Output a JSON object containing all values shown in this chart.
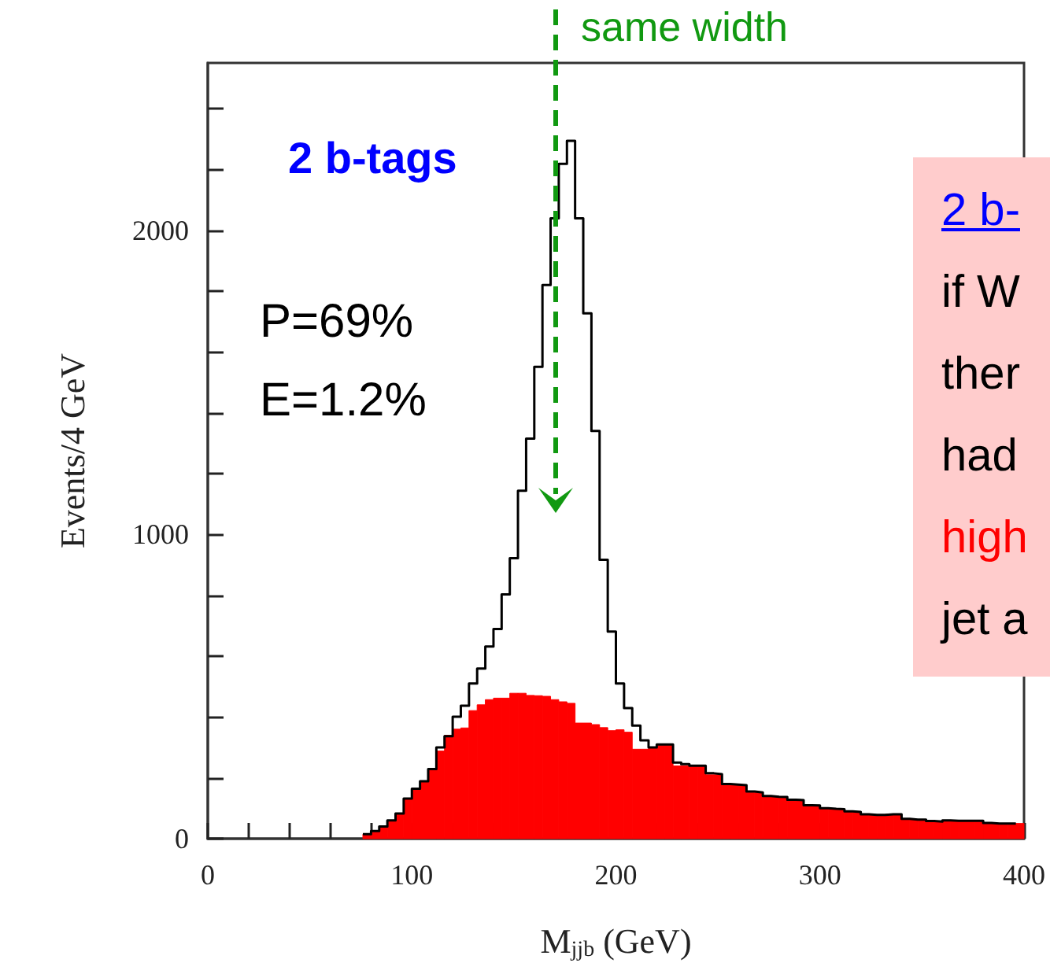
{
  "chart_data": {
    "type": "histogram",
    "xlabel": "M$_{jjb}$ (GeV)",
    "ylabel": "Events/4 GeV",
    "bins": [
      76,
      80,
      84,
      88,
      92,
      96,
      100,
      104,
      108,
      112,
      116,
      120,
      124,
      128,
      132,
      136,
      140,
      144,
      148,
      152,
      156,
      160,
      164,
      168,
      172,
      176,
      180,
      184,
      188,
      192,
      196,
      200,
      204,
      208,
      212,
      216,
      220,
      224,
      228,
      232,
      236,
      240,
      244,
      248,
      252,
      256,
      260,
      264,
      268,
      272,
      276,
      280,
      284,
      288,
      292,
      296,
      300,
      304,
      308,
      312,
      316,
      320,
      324,
      328,
      332,
      336,
      340,
      344,
      348,
      352,
      356,
      360,
      364,
      368,
      372,
      376,
      380,
      384,
      388,
      392,
      396,
      400
    ],
    "series": [
      {
        "color": "#ff0000",
        "values": [
          15,
          25,
          40,
          60,
          83,
          132,
          164,
          189,
          229,
          288,
          340,
          360,
          364,
          421,
          440,
          457,
          462,
          462,
          478,
          478,
          471,
          470,
          468,
          457,
          450,
          445,
          380,
          380,
          375,
          365,
          355,
          358,
          350,
          294,
          294,
          300,
          307,
          307,
          239,
          239,
          239,
          239,
          210,
          210,
          176,
          176,
          176,
          151,
          151,
          137,
          137,
          137,
          127,
          127,
          109,
          109,
          97,
          97,
          97,
          88,
          88,
          78,
          78,
          78,
          80,
          80,
          63,
          63,
          63,
          55,
          55,
          59,
          59,
          59,
          59,
          59,
          50,
          50,
          50,
          50,
          50
        ]
      },
      {
        "type": "step",
        "color": "#000000",
        "x": [
          76,
          80,
          84,
          88,
          92,
          96,
          100,
          104,
          108,
          112,
          116,
          120,
          124,
          128,
          132,
          136,
          140,
          144,
          148,
          152,
          156,
          160,
          164,
          168,
          172,
          176,
          180,
          184,
          188,
          192,
          196,
          200,
          204,
          208,
          212,
          216,
          220,
          224,
          228,
          232,
          236,
          240,
          244,
          248,
          252,
          256,
          260,
          264,
          268,
          272,
          276,
          280,
          284,
          288,
          292,
          296,
          300,
          304,
          308,
          312,
          316,
          320,
          324,
          328,
          332,
          336,
          340,
          344,
          348,
          352,
          356,
          360,
          364,
          368,
          372,
          376,
          380,
          384,
          388,
          392,
          396
        ],
        "values": [
          15,
          25,
          40,
          60,
          83,
          132,
          164,
          189,
          229,
          300,
          337,
          401,
          437,
          510,
          559,
          632,
          689,
          803,
          922,
          1144,
          1315,
          1551,
          1820,
          2039,
          2218,
          2294,
          2039,
          1727,
          1340,
          917,
          681,
          510,
          429,
          372,
          323,
          300,
          310,
          310,
          250,
          245,
          240,
          240,
          215,
          212,
          180,
          178,
          176,
          155,
          152,
          140,
          138,
          137,
          128,
          127,
          110,
          109,
          100,
          98,
          97,
          90,
          88,
          80,
          78,
          78,
          80,
          80,
          65,
          63,
          63,
          58,
          56,
          60,
          59,
          59,
          59,
          59,
          52,
          50,
          50,
          50,
          50
        ]
      }
    ],
    "xlim": [
      0,
      400
    ],
    "xticks": [
      0,
      {
        "value": 20,
        "label": null
      },
      {
        "value": 40,
        "label": null
      },
      {
        "value": 60,
        "label": null
      },
      {
        "value": 80,
        "label": null
      },
      100,
      {
        "value": 120,
        "label": null
      },
      {
        "value": 140,
        "label": null
      },
      {
        "value": 160,
        "label": null
      },
      {
        "value": 180,
        "label": null
      },
      200,
      {
        "value": 220,
        "label": null
      },
      {
        "value": 240,
        "label": null
      },
      {
        "value": 260,
        "label": null
      },
      {
        "value": 280,
        "label": null
      },
      300,
      {
        "value": 320,
        "label": null
      },
      {
        "value": 340,
        "label": null
      },
      {
        "value": 360,
        "label": null
      },
      {
        "value": 380,
        "label": null
      },
      400
    ],
    "ylim": [
      0,
      2550
    ],
    "yticks": [
      0,
      {
        "value": 200,
        "label": null
      },
      {
        "value": 400,
        "label": null
      },
      {
        "value": 600,
        "label": null
      },
      {
        "value": 800,
        "label": null
      },
      1000,
      {
        "value": 1200,
        "label": null
      },
      {
        "value": 1400,
        "label": null
      },
      {
        "value": 1600,
        "label": null
      },
      {
        "value": 1800,
        "label": null
      },
      2000,
      {
        "value": 2200,
        "label": null
      },
      {
        "value": 2400,
        "label": null
      }
    ],
    "annotations": [
      "2 b-tags",
      "P=69%",
      "E=1.2%",
      "same width",
      "2 b-",
      "if W",
      "ther",
      "had",
      "high",
      "jet a"
    ]
  }
}
